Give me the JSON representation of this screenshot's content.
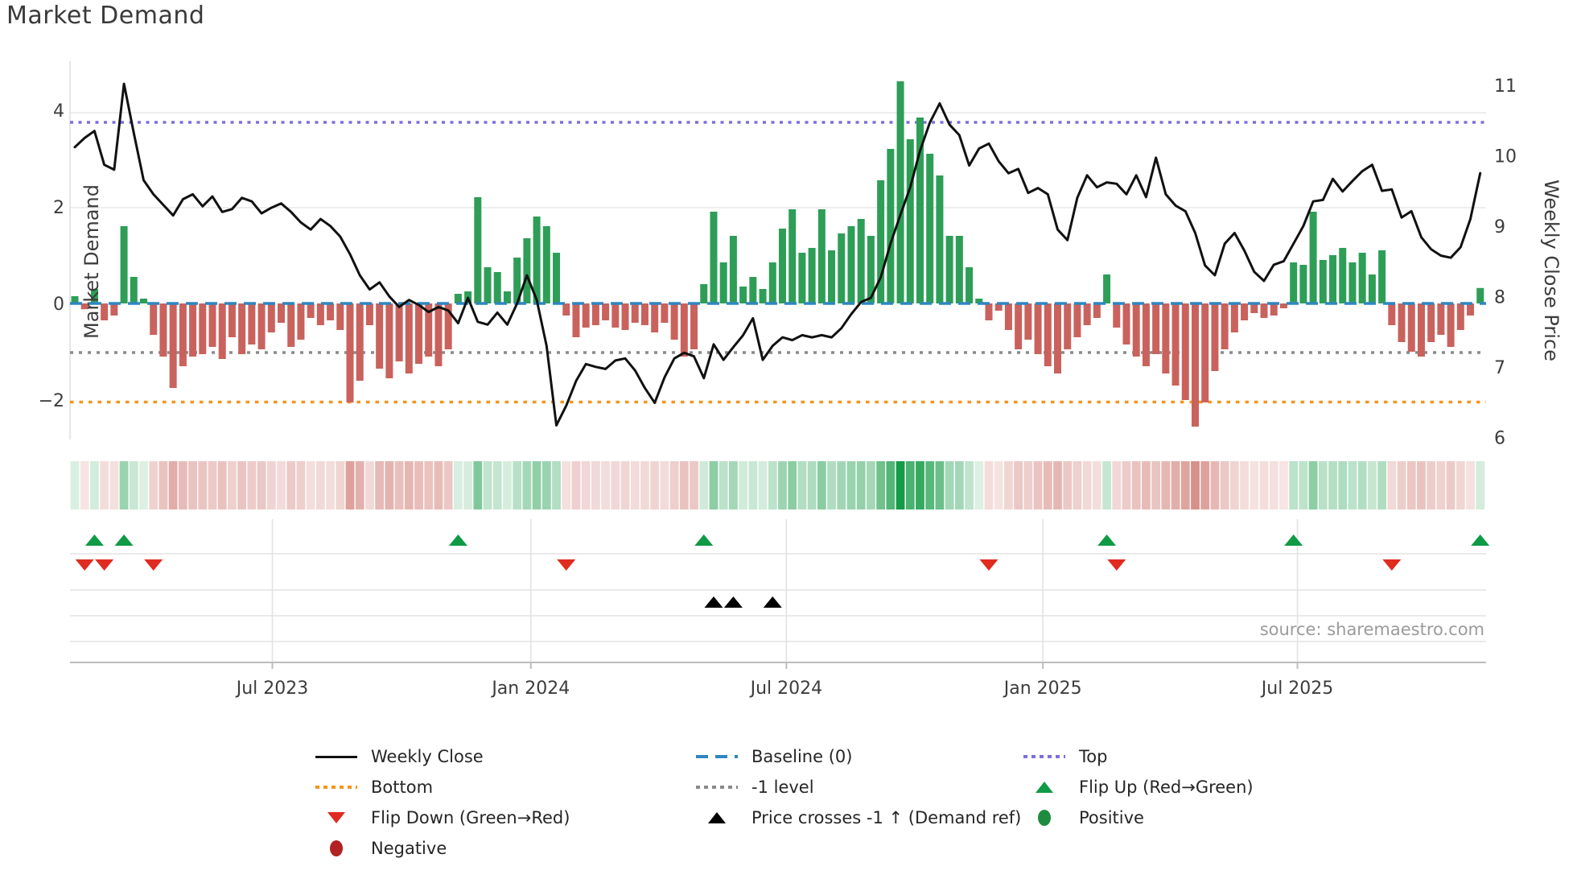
{
  "title": "Market Demand",
  "source_text": "source: sharemaestro.com",
  "axes": {
    "left_label": "Market Demand",
    "right_label": "Weekly Close Price",
    "left_ticks": [
      {
        "label": "4",
        "value": 4
      },
      {
        "label": "2",
        "value": 2
      },
      {
        "label": "0",
        "value": 0
      },
      {
        "label": "−2",
        "value": -2
      }
    ],
    "right_ticks": [
      {
        "label": "11",
        "value": 11
      },
      {
        "label": "10",
        "value": 10
      },
      {
        "label": "9",
        "value": 9
      },
      {
        "label": "8",
        "value": 8
      },
      {
        "label": "7",
        "value": 7
      },
      {
        "label": "6",
        "value": 6
      }
    ],
    "x_ticks": [
      {
        "label": "Jul 2023",
        "week": 20.1
      },
      {
        "label": "Jan 2024",
        "week": 46.4
      },
      {
        "label": "Jul 2024",
        "week": 72.4
      },
      {
        "label": "Jan 2025",
        "week": 98.5
      },
      {
        "label": "Jul 2025",
        "week": 124.4
      }
    ]
  },
  "colors": {
    "bar_positive": "#2e9e57",
    "bar_negative": "#c9625d",
    "price_line": "#111111",
    "baseline": "#2e86c1",
    "top_line": "#7b6fe0",
    "minus1_line": "#8a8a8a",
    "bottom_line": "#f5941d",
    "flip_up_marker": "#0f9a45",
    "flip_down_marker": "#e02b20",
    "price_cross_marker": "#000000",
    "positive_dot": "#1e8c3e",
    "negative_dot": "#b22222",
    "grid": "#e7e7e7",
    "axis_text": "#3c3c3c",
    "source_text": "#9b9b9b"
  },
  "legend": {
    "columns": [
      {
        "items": [
          {
            "swatch": "line-black",
            "label": "Weekly Close"
          },
          {
            "swatch": "dotted-orange",
            "label": "Bottom"
          },
          {
            "swatch": "triangle-down-red",
            "label": "Flip Down (Green→Red)"
          },
          {
            "swatch": "dot-darkred",
            "label": "Negative"
          }
        ]
      },
      {
        "items": [
          {
            "swatch": "dashed-blue",
            "label": "Baseline (0)"
          },
          {
            "swatch": "dotted-gray",
            "label": "-1 level"
          },
          {
            "swatch": "triangle-up-black",
            "label": "Price crosses -1 ↑ (Demand ref)"
          }
        ]
      },
      {
        "items": [
          {
            "swatch": "dotted-violet",
            "label": "Top"
          },
          {
            "swatch": "triangle-up-green",
            "label": "Flip Up (Red→Green)"
          },
          {
            "swatch": "dot-green",
            "label": "Positive"
          }
        ]
      }
    ]
  },
  "chart_data": {
    "type": "bar",
    "subtype": "composite: weekly bars (demand) + line (price) + heatmap strip + event markers",
    "start_date": "2023-02-10",
    "week_interval_days": 7,
    "weeks": 144,
    "xlabel": "",
    "ylabel_left": "Market Demand",
    "ylabel_right": "Weekly Close Price",
    "ylim_left": [
      -2.85,
      5.1
    ],
    "ylim_right": [
      5.97,
      11.34
    ],
    "grid": "horizontal light at 4 and 2; vertical light in marker panel at half-year ticks",
    "legend_position": "bottom, 3 columns",
    "reference_lines": [
      {
        "name": "Top",
        "value": 3.7,
        "style": "dotted",
        "color": "#7b6fe0"
      },
      {
        "name": "Baseline (0)",
        "value": 0,
        "style": "dashed",
        "color": "#2e86c1"
      },
      {
        "name": "-1 level",
        "value": -1,
        "style": "dotted",
        "color": "#8a8a8a"
      },
      {
        "name": "Bottom",
        "value": -2.05,
        "style": "dotted",
        "color": "#f5941d"
      }
    ],
    "series": [
      {
        "name": "Market Demand",
        "type": "bar",
        "axis": "left",
        "values": [
          0.15,
          -0.12,
          0.3,
          -0.35,
          -0.25,
          1.6,
          0.55,
          0.1,
          -0.65,
          -1.1,
          -1.75,
          -1.3,
          -1.1,
          -1.05,
          -0.9,
          -1.15,
          -0.7,
          -1.05,
          -0.85,
          -0.95,
          -0.6,
          -0.4,
          -0.9,
          -0.75,
          -0.3,
          -0.45,
          -0.35,
          -0.55,
          -2.05,
          -1.6,
          -0.45,
          -1.35,
          -1.55,
          -1.2,
          -1.45,
          -1.25,
          -1.1,
          -1.3,
          -0.95,
          0.2,
          0.25,
          2.2,
          0.75,
          0.65,
          0.25,
          0.95,
          1.35,
          1.8,
          1.6,
          1.05,
          -0.25,
          -0.7,
          -0.5,
          -0.45,
          -0.35,
          -0.5,
          -0.55,
          -0.4,
          -0.45,
          -0.6,
          -0.4,
          -0.75,
          -1.1,
          -0.95,
          0.4,
          1.9,
          0.85,
          1.4,
          0.35,
          0.55,
          0.3,
          0.85,
          1.55,
          1.95,
          1.05,
          1.15,
          1.95,
          1.1,
          1.45,
          1.6,
          1.75,
          1.4,
          2.55,
          3.2,
          4.6,
          3.4,
          3.85,
          3.1,
          2.65,
          1.4,
          1.4,
          0.75,
          0.1,
          -0.35,
          -0.15,
          -0.55,
          -0.95,
          -0.75,
          -1.05,
          -1.3,
          -1.45,
          -0.95,
          -0.7,
          -0.45,
          -0.3,
          0.6,
          -0.5,
          -0.85,
          -1.1,
          -1.3,
          -1.05,
          -1.45,
          -1.7,
          -2.0,
          -2.55,
          -2.05,
          -1.4,
          -0.95,
          -0.6,
          -0.35,
          -0.2,
          -0.3,
          -0.25,
          -0.1,
          0.85,
          0.8,
          1.9,
          0.9,
          1.0,
          1.15,
          0.85,
          1.05,
          0.6,
          1.1,
          -0.45,
          -0.8,
          -1.0,
          -1.1,
          -0.8,
          -0.65,
          -0.9,
          -0.55,
          -0.25,
          0.32
        ]
      },
      {
        "name": "Weekly Close",
        "type": "line",
        "axis": "right",
        "values": [
          10.12,
          10.25,
          10.35,
          9.87,
          9.8,
          11.02,
          10.32,
          9.65,
          9.45,
          9.3,
          9.15,
          9.38,
          9.45,
          9.28,
          9.42,
          9.2,
          9.24,
          9.4,
          9.35,
          9.18,
          9.26,
          9.32,
          9.2,
          9.05,
          8.95,
          9.1,
          9.0,
          8.85,
          8.6,
          8.3,
          8.1,
          8.2,
          8.0,
          7.85,
          7.95,
          7.88,
          7.78,
          7.85,
          7.8,
          7.62,
          7.98,
          7.64,
          7.6,
          7.77,
          7.6,
          7.9,
          8.3,
          7.95,
          7.3,
          6.17,
          6.45,
          6.8,
          7.04,
          7.0,
          6.97,
          7.09,
          7.12,
          6.95,
          6.7,
          6.49,
          6.85,
          7.12,
          7.2,
          7.15,
          6.84,
          7.32,
          7.1,
          7.28,
          7.45,
          7.69,
          7.1,
          7.3,
          7.42,
          7.38,
          7.45,
          7.42,
          7.45,
          7.42,
          7.55,
          7.75,
          7.92,
          7.98,
          8.27,
          8.75,
          9.16,
          9.55,
          10.07,
          10.47,
          10.74,
          10.44,
          10.29,
          9.86,
          10.1,
          10.17,
          9.92,
          9.75,
          9.81,
          9.47,
          9.54,
          9.45,
          8.95,
          8.8,
          9.4,
          9.72,
          9.55,
          9.62,
          9.6,
          9.45,
          9.72,
          9.41,
          9.97,
          9.45,
          9.29,
          9.21,
          8.9,
          8.44,
          8.3,
          8.75,
          8.9,
          8.65,
          8.35,
          8.22,
          8.45,
          8.5,
          8.75,
          9.0,
          9.35,
          9.37,
          9.67,
          9.49,
          9.64,
          9.78,
          9.87,
          9.5,
          9.52,
          9.12,
          9.21,
          8.84,
          8.67,
          8.58,
          8.55,
          8.7,
          9.1,
          9.75
        ]
      }
    ],
    "markers": {
      "flip_up_weeks": [
        2,
        5,
        39,
        64,
        105,
        124,
        143
      ],
      "flip_down_weeks": [
        1,
        3,
        8,
        50,
        93,
        106,
        134
      ],
      "price_cross_minus1_weeks": [
        65,
        67,
        71
      ]
    },
    "heatmap": "weekly strip below main plot; cell color = sign/intensity of Market Demand value (green positive, red negative)"
  }
}
